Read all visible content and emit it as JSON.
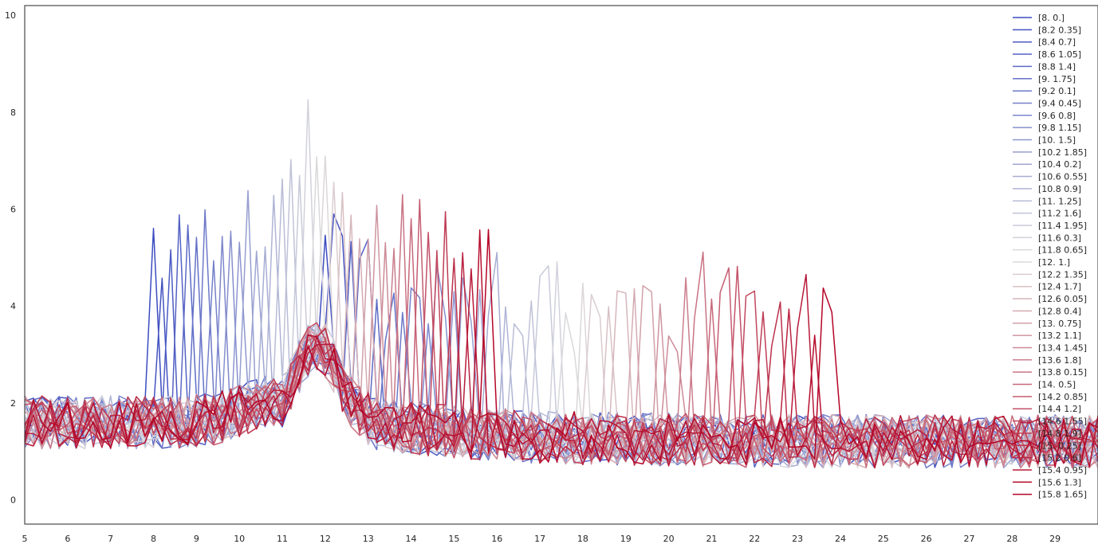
{
  "chart_data": {
    "type": "line",
    "title": "",
    "xlabel": "",
    "ylabel": "",
    "xlim": [
      5,
      30
    ],
    "ylim": [
      -0.5,
      10.2
    ],
    "x_ticks": [
      "5",
      "6",
      "7",
      "8",
      "9",
      "10",
      "11",
      "12",
      "13",
      "14",
      "15",
      "16",
      "17",
      "18",
      "19",
      "20",
      "21",
      "22",
      "23",
      "24",
      "25",
      "26",
      "27",
      "28",
      "29"
    ],
    "y_ticks": [
      "0",
      "2",
      "4",
      "6",
      "8",
      "10"
    ],
    "grid": false,
    "legend_position": "top-right",
    "colormap": "coolwarm",
    "colormap_stops": [
      "#3b4cc0",
      "#dddddd",
      "#b40426"
    ],
    "x_step": 0.2,
    "series": [
      {
        "name": "[8.  0.]",
        "params": [
          8.0,
          0.0
        ]
      },
      {
        "name": "[8.2  0.35]",
        "params": [
          8.2,
          0.35
        ]
      },
      {
        "name": "[8.4 0.7]",
        "params": [
          8.4,
          0.7
        ]
      },
      {
        "name": "[8.6  1.05]",
        "params": [
          8.6,
          1.05
        ]
      },
      {
        "name": "[8.8 1.4]",
        "params": [
          8.8,
          1.4
        ]
      },
      {
        "name": "[9.   1.75]",
        "params": [
          9.0,
          1.75
        ]
      },
      {
        "name": "[9.2 0.1]",
        "params": [
          9.2,
          0.1
        ]
      },
      {
        "name": "[9.4  0.45]",
        "params": [
          9.4,
          0.45
        ]
      },
      {
        "name": "[9.6 0.8]",
        "params": [
          9.6,
          0.8
        ]
      },
      {
        "name": "[9.8  1.15]",
        "params": [
          9.8,
          1.15
        ]
      },
      {
        "name": "[10.   1.5]",
        "params": [
          10.0,
          1.5
        ]
      },
      {
        "name": "[10.2   1.85]",
        "params": [
          10.2,
          1.85
        ]
      },
      {
        "name": "[10.4  0.2]",
        "params": [
          10.4,
          0.2
        ]
      },
      {
        "name": "[10.6  0.55]",
        "params": [
          10.6,
          0.55
        ]
      },
      {
        "name": "[10.8  0.9]",
        "params": [
          10.8,
          0.9
        ]
      },
      {
        "name": "[11.    1.25]",
        "params": [
          11.0,
          1.25
        ]
      },
      {
        "name": "[11.2  1.6]",
        "params": [
          11.2,
          1.6
        ]
      },
      {
        "name": "[11.4   1.95]",
        "params": [
          11.4,
          1.95
        ]
      },
      {
        "name": "[11.6  0.3]",
        "params": [
          11.6,
          0.3
        ]
      },
      {
        "name": "[11.8   0.65]",
        "params": [
          11.8,
          0.65
        ]
      },
      {
        "name": "[12.  1.]",
        "params": [
          12.0,
          1.0
        ]
      },
      {
        "name": "[12.2   1.35]",
        "params": [
          12.2,
          1.35
        ]
      },
      {
        "name": "[12.4  1.7]",
        "params": [
          12.4,
          1.7
        ]
      },
      {
        "name": "[12.6   0.05]",
        "params": [
          12.6,
          0.05
        ]
      },
      {
        "name": "[12.8  0.4]",
        "params": [
          12.8,
          0.4
        ]
      },
      {
        "name": "[13.    0.75]",
        "params": [
          13.0,
          0.75
        ]
      },
      {
        "name": "[13.2  1.1]",
        "params": [
          13.2,
          1.1
        ]
      },
      {
        "name": "[13.4   1.45]",
        "params": [
          13.4,
          1.45
        ]
      },
      {
        "name": "[13.6  1.8]",
        "params": [
          13.6,
          1.8
        ]
      },
      {
        "name": "[13.8   0.15]",
        "params": [
          13.8,
          0.15
        ]
      },
      {
        "name": "[14.   0.5]",
        "params": [
          14.0,
          0.5
        ]
      },
      {
        "name": "[14.2   0.85]",
        "params": [
          14.2,
          0.85
        ]
      },
      {
        "name": "[14.4  1.2]",
        "params": [
          14.4,
          1.2
        ]
      },
      {
        "name": "[14.6   1.55]",
        "params": [
          14.6,
          1.55
        ]
      },
      {
        "name": "[14.8  1.9]",
        "params": [
          14.8,
          1.9
        ]
      },
      {
        "name": "[15.    0.25]",
        "params": [
          15.0,
          0.25
        ]
      },
      {
        "name": "[15.2  0.6]",
        "params": [
          15.2,
          0.6
        ]
      },
      {
        "name": "[15.4   0.95]",
        "params": [
          15.4,
          0.95
        ]
      },
      {
        "name": "[15.6  1.3]",
        "params": [
          15.6,
          1.3
        ]
      },
      {
        "name": "[15.8   1.65]",
        "params": [
          15.8,
          1.65
        ]
      }
    ]
  }
}
